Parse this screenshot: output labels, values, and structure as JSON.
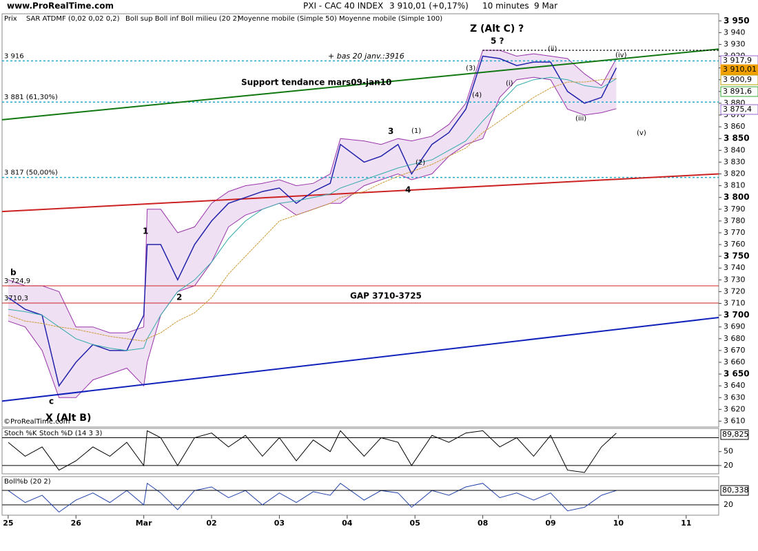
{
  "chart_data": {
    "type": "line",
    "site": "www.ProRealTime.com",
    "title": "PXI - CAC 40 INDEX",
    "last_price": "3 910,01 (+0,17%)",
    "interval": "10 minutes",
    "date": "9 Mar",
    "copyright": "©ProRealTime.com",
    "xlim": [
      -0.09,
      10.48
    ],
    "xticks": [
      {
        "value": 0,
        "label": "25"
      },
      {
        "value": 1,
        "label": "26"
      },
      {
        "value": 2,
        "label": "Mar"
      },
      {
        "value": 3,
        "label": "02"
      },
      {
        "value": 4,
        "label": "03"
      },
      {
        "value": 5,
        "label": "04"
      },
      {
        "value": 6,
        "label": "05"
      },
      {
        "value": 7,
        "label": "08"
      },
      {
        "value": 8,
        "label": "09"
      },
      {
        "value": 9,
        "label": "10"
      },
      {
        "value": 10,
        "label": "11"
      }
    ],
    "ylim": [
      3605,
      3956
    ],
    "yticks": [
      {
        "value": 3610,
        "label": "3 610"
      },
      {
        "value": 3620,
        "label": "3 620"
      },
      {
        "value": 3630,
        "label": "3 630"
      },
      {
        "value": 3640,
        "label": "3 640"
      },
      {
        "value": 3650,
        "label": "3 650"
      },
      {
        "value": 3660,
        "label": "3 660"
      },
      {
        "value": 3670,
        "label": "3 670"
      },
      {
        "value": 3680,
        "label": "3 680"
      },
      {
        "value": 3690,
        "label": "3 690"
      },
      {
        "value": 3700,
        "label": "3 700"
      },
      {
        "value": 3710,
        "label": "3 710"
      },
      {
        "value": 3720,
        "label": "3 720"
      },
      {
        "value": 3730,
        "label": "3 730"
      },
      {
        "value": 3740,
        "label": "3 740"
      },
      {
        "value": 3750,
        "label": "3 750"
      },
      {
        "value": 3760,
        "label": "3 760"
      },
      {
        "value": 3770,
        "label": "3 770"
      },
      {
        "value": 3780,
        "label": "3 780"
      },
      {
        "value": 3790,
        "label": "3 790"
      },
      {
        "value": 3800,
        "label": "3 800"
      },
      {
        "value": 3810,
        "label": "3 810"
      },
      {
        "value": 3820,
        "label": "3 820"
      },
      {
        "value": 3830,
        "label": "3 830"
      },
      {
        "value": 3840,
        "label": "3 840"
      },
      {
        "value": 3850,
        "label": "3 850"
      },
      {
        "value": 3860,
        "label": "3 860"
      },
      {
        "value": 3870,
        "label": "3 870"
      },
      {
        "value": 3880,
        "label": "3 880"
      },
      {
        "value": 3890,
        "label": "3 890"
      },
      {
        "value": 3900,
        "label": "3 900"
      },
      {
        "value": 3910,
        "label": "3 910"
      },
      {
        "value": 3920,
        "label": "3 920"
      },
      {
        "value": 3930,
        "label": "3 930"
      },
      {
        "value": 3940,
        "label": "3 940"
      },
      {
        "value": 3950,
        "label": "3 950"
      }
    ],
    "x": [
      0,
      0.25,
      0.5,
      0.75,
      1,
      1.25,
      1.5,
      1.75,
      2,
      2.05,
      2.25,
      2.5,
      2.75,
      3,
      3.25,
      3.5,
      3.75,
      4,
      4.25,
      4.5,
      4.75,
      4.9,
      5.25,
      5.5,
      5.75,
      5.95,
      6.25,
      6.5,
      6.75,
      7,
      7.25,
      7.5,
      7.75,
      8,
      8.25,
      8.5,
      8.75,
      8.97
    ],
    "series": [
      {
        "name": "Prix",
        "color": "#2222aa",
        "values": [
          3715,
          3705,
          3700,
          3640,
          3660,
          3675,
          3670,
          3670,
          3700,
          3760,
          3760,
          3730,
          3760,
          3780,
          3795,
          3800,
          3805,
          3808,
          3795,
          3805,
          3812,
          3845,
          3830,
          3835,
          3845,
          3820,
          3845,
          3855,
          3875,
          3920,
          3918,
          3912,
          3915,
          3915,
          3890,
          3880,
          3885,
          3910.01
        ]
      },
      {
        "name": "Moyenne mobile (Simple 50)",
        "color": "#33aaaa",
        "values": [
          3705,
          3703,
          3700,
          3690,
          3680,
          3675,
          3672,
          3670,
          3672,
          3680,
          3700,
          3720,
          3730,
          3745,
          3765,
          3780,
          3790,
          3795,
          3797,
          3800,
          3803,
          3808,
          3815,
          3820,
          3825,
          3828,
          3832,
          3840,
          3848,
          3865,
          3880,
          3895,
          3900,
          3902,
          3900,
          3895,
          3893,
          3900.9
        ]
      },
      {
        "name": "Moyenne mobile (Simple 100)",
        "color": "#cc9933",
        "values": [
          3700,
          3695,
          3693,
          3690,
          3688,
          3685,
          3682,
          3680,
          3678,
          3680,
          3685,
          3695,
          3702,
          3715,
          3735,
          3750,
          3765,
          3780,
          3785,
          3790,
          3795,
          3800,
          3805,
          3812,
          3818,
          3822,
          3828,
          3835,
          3842,
          3855,
          3865,
          3875,
          3885,
          3893,
          3898,
          3898,
          3900,
          3901
        ]
      }
    ],
    "bands": {
      "name": "Boll sup Boll inf Boll milieu (20 2)",
      "color": "#9933aa",
      "upper": [
        3730,
        3725,
        3725,
        3720,
        3690,
        3690,
        3685,
        3685,
        3690,
        3790,
        3790,
        3770,
        3775,
        3795,
        3805,
        3810,
        3812,
        3815,
        3810,
        3812,
        3820,
        3850,
        3848,
        3845,
        3850,
        3848,
        3852,
        3862,
        3880,
        3925,
        3925,
        3920,
        3922,
        3920,
        3918,
        3905,
        3895,
        3917.9
      ],
      "lower": [
        3695,
        3690,
        3670,
        3630,
        3630,
        3645,
        3650,
        3655,
        3640,
        3660,
        3700,
        3720,
        3725,
        3745,
        3775,
        3785,
        3790,
        3795,
        3785,
        3790,
        3795,
        3795,
        3810,
        3815,
        3820,
        3815,
        3820,
        3835,
        3845,
        3850,
        3885,
        3900,
        3902,
        3900,
        3875,
        3870,
        3872,
        3875.4
      ]
    },
    "sar": {
      "name": "SAR ATDMF (0,02 0,02 0,2)",
      "color": "#33aa33"
    },
    "price_labels": [
      {
        "value": 3917.9,
        "label": "3 917,9",
        "color": "#9966cc"
      },
      {
        "value": 3910.01,
        "label": "3 910,01",
        "color": "#f0a000"
      },
      {
        "value": 3900.9,
        "label": "3 900,9",
        "color": "#b8a000"
      },
      {
        "value": 3891.6,
        "label": "3 891,6",
        "color": "#33aa33"
      },
      {
        "value": 3875.4,
        "label": "3 875,4",
        "color": "#9966cc"
      }
    ],
    "levels": [
      {
        "value": 3916,
        "label": "3 916"
      },
      {
        "value": 3881,
        "label": "3 881 (61,30%)"
      },
      {
        "value": 3817,
        "label": "3 817 (50,00%)"
      }
    ],
    "gap": [
      {
        "value": 3724.9,
        "label": "3 724,9"
      },
      {
        "value": 3710.3,
        "label": "3710,3"
      }
    ],
    "trendlines": [
      {
        "color": "#117711",
        "values": [
          3866,
          3926
        ]
      },
      {
        "color": "#cc2222",
        "values": [
          3788,
          3820
        ]
      },
      {
        "color": "#1122bb",
        "values": [
          3627,
          3698
        ]
      }
    ],
    "resistance": 3925,
    "annotations": [
      "Z (Alt C) ?",
      "5 ?",
      "(ii)",
      "(iv)",
      "(i)",
      "(iii)",
      "(v)",
      "(3)",
      "(4)",
      "(1)",
      "(2)",
      "3",
      "4",
      "1",
      "2",
      "b",
      "c",
      "X (Alt B)",
      "Support tendance mars09-jan10",
      "+ bas 20 janv.:3916",
      "GAP 3710-3725"
    ],
    "stoch": {
      "name": "Stoch %K",
      "name2": "Stoch %D (14 3 3)",
      "color": "#000000",
      "ylim": [
        2,
        100
      ],
      "yticks": [
        50,
        20
      ],
      "levels": [
        80,
        20
      ],
      "values": [
        70,
        40,
        60,
        10,
        30,
        60,
        40,
        70,
        20,
        95,
        80,
        20,
        80,
        90,
        60,
        85,
        40,
        80,
        30,
        75,
        50,
        95,
        40,
        80,
        70,
        20,
        85,
        70,
        90,
        95,
        60,
        80,
        40,
        85,
        10,
        5,
        60,
        89.825
      ],
      "value_labels": [
        "89,825"
      ]
    },
    "bollb": {
      "name": "Boll%b (20 2)",
      "color": "#2244aa",
      "ylim": [
        -23,
        138
      ],
      "yticks": [
        20
      ],
      "values": [
        80,
        30,
        60,
        -10,
        40,
        70,
        30,
        80,
        20,
        110,
        70,
        0,
        80,
        95,
        50,
        80,
        20,
        70,
        30,
        75,
        60,
        110,
        40,
        80,
        70,
        10,
        80,
        60,
        95,
        110,
        50,
        70,
        40,
        70,
        -5,
        10,
        60,
        80.338
      ],
      "value_labels": [
        "80,338"
      ]
    }
  }
}
